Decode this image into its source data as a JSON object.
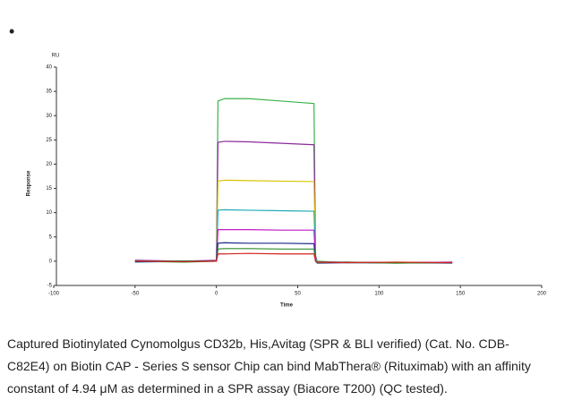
{
  "chart_data": {
    "type": "line",
    "bullet": "•",
    "unit_label": "RU",
    "y_label": "Response",
    "x_label": "Time",
    "x": [
      -50,
      -20,
      0,
      1,
      5,
      20,
      40,
      60,
      61,
      62,
      80,
      110,
      145
    ],
    "series": [
      {
        "color": "#3cb44b",
        "values": [
          0,
          -0.2,
          0,
          33,
          33.5,
          33.5,
          33,
          32.5,
          1,
          0,
          -0.3,
          -0.4,
          -0.3
        ]
      },
      {
        "color": "#8e2a9e",
        "values": [
          0.2,
          0,
          0.2,
          24.5,
          24.7,
          24.6,
          24.3,
          24,
          1,
          -0.2,
          -0.2,
          -0.3,
          -0.2
        ]
      },
      {
        "color": "#d9c400",
        "values": [
          0,
          0,
          0,
          16.5,
          16.7,
          16.6,
          16.5,
          16.4,
          0.5,
          -0.3,
          -0.3,
          -0.2,
          -0.3
        ]
      },
      {
        "color": "#1fa9b8",
        "values": [
          -0.2,
          0,
          0,
          10.5,
          10.6,
          10.5,
          10.4,
          10.3,
          0.3,
          -0.2,
          -0.3,
          -0.3,
          -0.2
        ]
      },
      {
        "color": "#c218c8",
        "values": [
          0,
          0,
          0.1,
          6.5,
          6.5,
          6.5,
          6.4,
          6.4,
          0,
          -0.2,
          -0.2,
          -0.3,
          -0.2
        ]
      },
      {
        "color": "#1b2a8a",
        "values": [
          -0.1,
          0,
          0,
          3.7,
          3.8,
          3.7,
          3.7,
          3.6,
          0,
          -0.4,
          -0.3,
          -0.3,
          -0.4
        ]
      },
      {
        "color": "#2e8b2e",
        "values": [
          0,
          0,
          0,
          2.5,
          2.6,
          2.6,
          2.5,
          2.5,
          0,
          -0.3,
          -0.2,
          -0.4,
          -0.3
        ]
      },
      {
        "color": "#d62020",
        "values": [
          0,
          -0.1,
          0,
          1.5,
          1.5,
          1.6,
          1.5,
          1.5,
          0,
          -0.2,
          -0.3,
          -0.2,
          -0.3
        ]
      }
    ],
    "xlim": [
      -100,
      200
    ],
    "xticks": [
      -100,
      -50,
      0,
      50,
      100,
      150,
      200
    ],
    "ylim": [
      -5,
      40
    ],
    "yticks": [
      -5,
      0,
      5,
      10,
      15,
      20,
      25,
      30,
      35,
      40
    ],
    "caption": [
      "Captured Biotinylated Cynomolgus CD32b, His,Avitag (SPR & BLI verified) (Cat. No. CDB-",
      "C82E4) on Biotin CAP - Series S sensor Chip can bind MabThera® (Rituximab) with an affinity",
      "constant of   4.94 μM as determined in a SPR assay (Biacore T200) (QC tested)."
    ]
  }
}
